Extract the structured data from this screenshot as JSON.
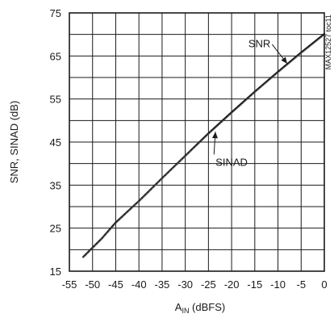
{
  "chart_data": {
    "type": "line",
    "xlabel_main": "A",
    "xlabel_sub": "IN",
    "xlabel_rest": " (dBFS)",
    "ylabel": "SNR, SINAD (dB)",
    "figure_code": "MAX12527 toc11",
    "xlim": [
      -55,
      0
    ],
    "ylim": [
      15,
      75
    ],
    "x_ticks": [
      "-55",
      "-50",
      "-45",
      "-40",
      "-35",
      "-30",
      "-25",
      "-20",
      "-15",
      "-10",
      "-5",
      "0"
    ],
    "y_ticks": [
      "15",
      "25",
      "35",
      "45",
      "55",
      "65",
      "75"
    ],
    "x_tick_values": [
      -55,
      -50,
      -45,
      -40,
      -35,
      -30,
      -25,
      -20,
      -15,
      -10,
      -5,
      0
    ],
    "y_tick_values": [
      15,
      25,
      35,
      45,
      55,
      65,
      75
    ],
    "grid_x_step": 5,
    "grid_y_step": 5,
    "grid": true,
    "series": [
      {
        "name": "SNR",
        "x": [
          -52,
          -48,
          -45,
          -42,
          -40,
          -35,
          -30,
          -25,
          -20,
          -15,
          -10,
          -5,
          0
        ],
        "y": [
          18.3,
          22.6,
          26.3,
          29.3,
          31.3,
          36.6,
          41.8,
          47,
          51.9,
          56.7,
          61.3,
          65.8,
          70.1
        ]
      },
      {
        "name": "SINAD",
        "x": [
          -52,
          -48,
          -45,
          -42,
          -40,
          -35,
          -30,
          -25,
          -20,
          -15,
          -10,
          -5,
          0
        ],
        "y": [
          18.2,
          22.5,
          26.1,
          29.2,
          31.2,
          36.5,
          41.7,
          46.8,
          51.7,
          56.5,
          61.1,
          65.6,
          69.9
        ]
      }
    ],
    "annotations": [
      {
        "text": "SNR",
        "text_x": -14,
        "text_y": 67,
        "arrow_to_x": -8,
        "arrow_to_y": 63.2
      },
      {
        "text": "SINAD",
        "text_x": -20,
        "text_y": 39.5,
        "arrow_to_x": -23.5,
        "arrow_to_y": 47.4
      }
    ]
  }
}
